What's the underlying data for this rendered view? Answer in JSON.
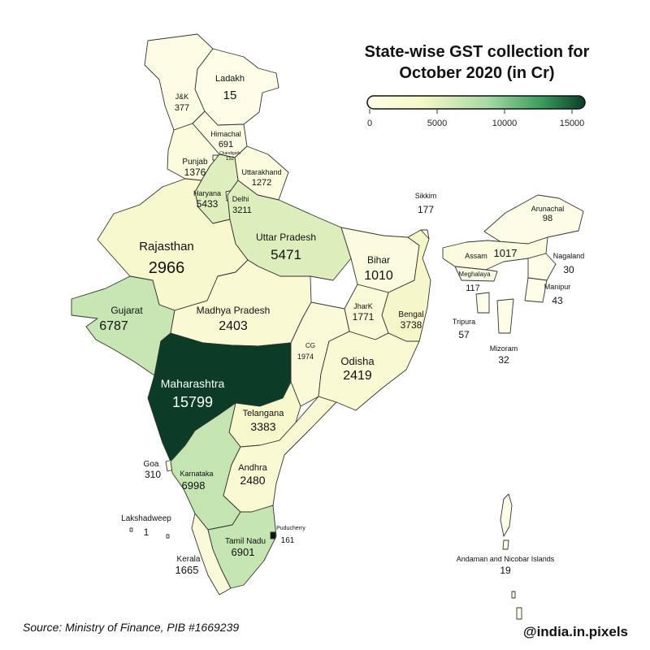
{
  "title_line1": "State-wise GST collection for",
  "title_line2": "October 2020 (in Cr)",
  "legend": {
    "ticks": [
      "0",
      "5000",
      "10000",
      "15000"
    ],
    "min": 0,
    "max": 15800,
    "colors": [
      "#fdfde8",
      "#f6f7c7",
      "#a8dba5",
      "#3a9d5d",
      "#0b3d26"
    ]
  },
  "states": [
    {
      "id": "ladakh",
      "name": "Ladakh",
      "value": "15"
    },
    {
      "id": "jk",
      "name": "J&K",
      "value": "377"
    },
    {
      "id": "himachal",
      "name": "Himachal",
      "value": "691"
    },
    {
      "id": "chandigarh",
      "name": "Chandigarh",
      "value": "152"
    },
    {
      "id": "punjab",
      "name": "Punjab",
      "value": "1376"
    },
    {
      "id": "uttarakhand",
      "name": "Uttarakhand",
      "value": "1272"
    },
    {
      "id": "haryana",
      "name": "Haryana",
      "value": "5433"
    },
    {
      "id": "delhi",
      "name": "Delhi",
      "value": "3211"
    },
    {
      "id": "rajasthan",
      "name": "Rajasthan",
      "value": "2966"
    },
    {
      "id": "up",
      "name": "Uttar Pradesh",
      "value": "5471"
    },
    {
      "id": "bihar",
      "name": "Bihar",
      "value": "1010"
    },
    {
      "id": "sikkim",
      "name": "Sikkim",
      "value": "177"
    },
    {
      "id": "arunachal",
      "name": "Arunachal",
      "value": "98"
    },
    {
      "id": "assam",
      "name": "Assam",
      "value": "1017"
    },
    {
      "id": "nagaland",
      "name": "Nagaland",
      "value": "30"
    },
    {
      "id": "meghalaya",
      "name": "Meghalaya",
      "value": "117"
    },
    {
      "id": "manipur",
      "name": "Manipur",
      "value": "43"
    },
    {
      "id": "tripura",
      "name": "Tripura",
      "value": "57"
    },
    {
      "id": "mizoram",
      "name": "Mizoram",
      "value": "32"
    },
    {
      "id": "gujarat",
      "name": "Gujarat",
      "value": "6787"
    },
    {
      "id": "mp",
      "name": "Madhya Pradesh",
      "value": "2403"
    },
    {
      "id": "jharkhand",
      "name": "JharK",
      "value": "1771"
    },
    {
      "id": "bengal",
      "name": "Bengal",
      "value": "3738"
    },
    {
      "id": "cg",
      "name": "CG",
      "value": "1974"
    },
    {
      "id": "odisha",
      "name": "Odisha",
      "value": "2419"
    },
    {
      "id": "maharashtra",
      "name": "Maharashtra",
      "value": "15799"
    },
    {
      "id": "telangana",
      "name": "Telangana",
      "value": "3383"
    },
    {
      "id": "goa",
      "name": "Goa",
      "value": "310"
    },
    {
      "id": "karnataka",
      "name": "Karnataka",
      "value": "6998"
    },
    {
      "id": "andhra",
      "name": "Andhra",
      "value": "2480"
    },
    {
      "id": "lakshadweep",
      "name": "Lakshadweep",
      "value": "1"
    },
    {
      "id": "puducherry",
      "name": "Puducherry",
      "value": "161"
    },
    {
      "id": "tamilnadu",
      "name": "Tamil Nadu",
      "value": "6901"
    },
    {
      "id": "kerala",
      "name": "Kerala",
      "value": "1665"
    },
    {
      "id": "andaman",
      "name": "Andaman and Nicobar Islands",
      "value": "19"
    }
  ],
  "source": "Source: Ministry of Finance, PIB #1669239",
  "handle": "@india.in.pixels"
}
